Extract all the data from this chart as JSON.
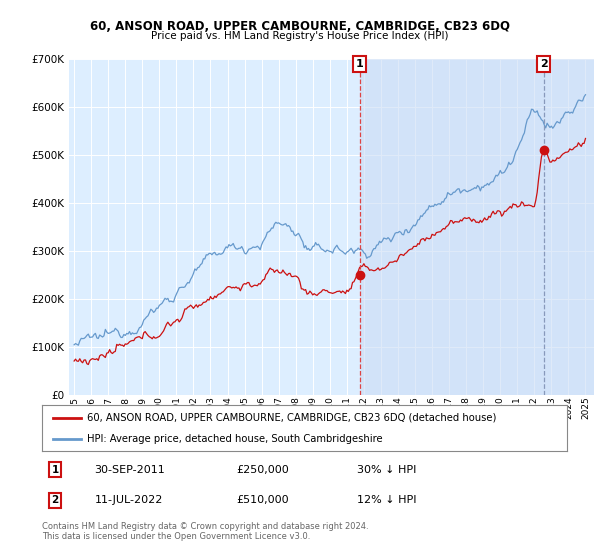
{
  "title1": "60, ANSON ROAD, UPPER CAMBOURNE, CAMBRIDGE, CB23 6DQ",
  "title2": "Price paid vs. HM Land Registry's House Price Index (HPI)",
  "background_color": "#ffffff",
  "plot_bg_color": "#ddeeff",
  "plot_bg_color2": "#ccddf0",
  "grid_color": "#ffffff",
  "hpi_color": "#6699cc",
  "price_color": "#cc1111",
  "dashed_color1": "#dd4444",
  "dashed_color2": "#8899bb",
  "shade_color": "#ccddf5",
  "annotation1_label": "1",
  "annotation2_label": "2",
  "legend_label1": "60, ANSON ROAD, UPPER CAMBOURNE, CAMBRIDGE, CB23 6DQ (detached house)",
  "legend_label2": "HPI: Average price, detached house, South Cambridgeshire",
  "note1_date": "30-SEP-2011",
  "note1_price": "£250,000",
  "note1_hpi": "30% ↓ HPI",
  "note2_date": "11-JUL-2022",
  "note2_price": "£510,000",
  "note2_hpi": "12% ↓ HPI",
  "copyright": "Contains HM Land Registry data © Crown copyright and database right 2024.\nThis data is licensed under the Open Government Licence v3.0.",
  "ylim": [
    0,
    700000
  ],
  "xlim_start": 1994.7,
  "xlim_end": 2025.5,
  "ann1_x": 2011.75,
  "ann1_y": 250000,
  "ann2_x": 2022.54,
  "ann2_y": 510000,
  "hpi_start_year": 1995,
  "hpi_end_year": 2025,
  "price_start_year": 1995,
  "price_end_year": 2025
}
